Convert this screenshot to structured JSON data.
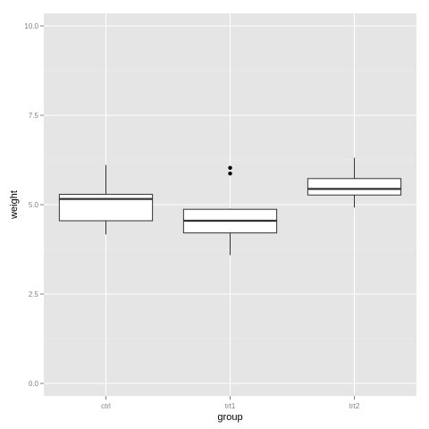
{
  "chart_data": {
    "type": "boxplot",
    "xlabel": "group",
    "ylabel": "weight",
    "ylim": [
      -0.35,
      10.35
    ],
    "yticks": [
      {
        "value": 0.0,
        "label": "0.0"
      },
      {
        "value": 2.5,
        "label": "2.5"
      },
      {
        "value": 5.0,
        "label": "5.0"
      },
      {
        "value": 7.5,
        "label": "7.5"
      },
      {
        "value": 10.0,
        "label": "10.0"
      }
    ],
    "categories": [
      "ctrl",
      "trt1",
      "trt2"
    ],
    "boxes": [
      {
        "category": "ctrl",
        "min": 4.17,
        "q1": 4.55,
        "median": 5.16,
        "q3": 5.29,
        "max": 6.11,
        "outliers": []
      },
      {
        "category": "trt1",
        "min": 3.59,
        "q1": 4.21,
        "median": 4.55,
        "q3": 4.87,
        "max": 4.89,
        "outliers": [
          5.87,
          6.03
        ]
      },
      {
        "category": "trt2",
        "min": 4.92,
        "q1": 5.27,
        "median": 5.44,
        "q3": 5.73,
        "max": 6.31,
        "outliers": []
      }
    ],
    "colors": {
      "panel_bg": "#e5e5e5",
      "grid_major": "#ffffff",
      "grid_minor": "#f2f2f2",
      "box_fill": "#ffffff",
      "box_stroke": "#333333",
      "point": "#000000"
    },
    "grid": true,
    "legend": "none"
  }
}
